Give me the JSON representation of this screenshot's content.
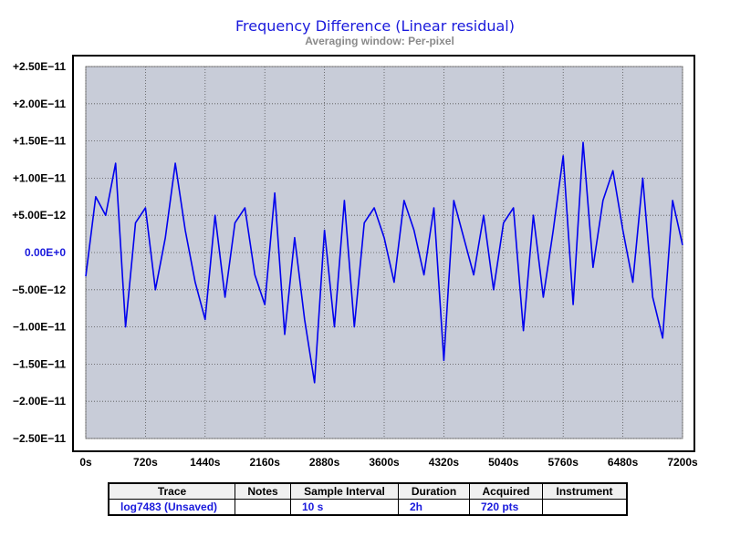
{
  "chart_data": {
    "type": "line",
    "title": "Frequency Difference  (Linear residual)",
    "subtitle": "Averaging window: Per-pixel",
    "xlabel": "",
    "ylabel": "",
    "x_unit": "s",
    "xlim": [
      0,
      7200
    ],
    "ylim": [
      -2.5e-11,
      2.5e-11
    ],
    "x_ticks": [
      0,
      720,
      1440,
      2160,
      2880,
      3600,
      4320,
      5040,
      5760,
      6480,
      7200
    ],
    "x_tick_labels": [
      "0s",
      "720s",
      "1440s",
      "2160s",
      "2880s",
      "3600s",
      "4320s",
      "5040s",
      "5760s",
      "6480s",
      "7200s"
    ],
    "y_ticks": [
      2.5e-11,
      2e-11,
      1.5e-11,
      1e-11,
      5e-12,
      0,
      -5e-12,
      -1e-11,
      -1.5e-11,
      -2e-11,
      -2.5e-11
    ],
    "y_tick_labels": [
      "+2.50E−11",
      "+2.00E−11",
      "+1.50E−11",
      "+1.00E−11",
      "+5.00E−12",
      "0.00E+0",
      "−5.00E−12",
      "−1.00E−11",
      "−1.50E−11",
      "−2.00E−11",
      "−2.50E−11"
    ],
    "grid": true,
    "colors": {
      "series": "#0000ee",
      "plot_bg": "#c8ccd8",
      "title": "#1a1adc",
      "zero_label": "#1a1adc"
    },
    "series": [
      {
        "x": [
          0,
          120,
          240,
          360,
          480,
          600,
          720,
          840,
          960,
          1080,
          1200,
          1320,
          1440,
          1560,
          1680,
          1800,
          1920,
          2040,
          2160,
          2280,
          2400,
          2520,
          2640,
          2760,
          2880,
          3000,
          3120,
          3240,
          3360,
          3480,
          3600,
          3720,
          3840,
          3960,
          4080,
          4200,
          4320,
          4440,
          4560,
          4680,
          4800,
          4920,
          5040,
          5160,
          5280,
          5400,
          5520,
          5640,
          5760,
          5880,
          6000,
          6120,
          6240,
          6360,
          6480,
          6600,
          6720,
          6840,
          6960,
          7080,
          7200
        ],
        "y": [
          -3.2e-12,
          7.5e-12,
          5e-12,
          1.2e-11,
          -1e-11,
          4e-12,
          6e-12,
          -5e-12,
          2e-12,
          1.2e-11,
          3e-12,
          -4e-12,
          -9e-12,
          5e-12,
          -6e-12,
          4e-12,
          6e-12,
          -3e-12,
          -7e-12,
          8e-12,
          -1.1e-11,
          2e-12,
          -9e-12,
          -1.75e-11,
          3e-12,
          -1e-11,
          7e-12,
          -1e-11,
          4e-12,
          6e-12,
          2e-12,
          -4e-12,
          7e-12,
          3e-12,
          -3e-12,
          6e-12,
          -1.45e-11,
          7e-12,
          2e-12,
          -3e-12,
          5e-12,
          -5e-12,
          4e-12,
          6e-12,
          -1.05e-11,
          5e-12,
          -6e-12,
          3e-12,
          1.3e-11,
          -7e-12,
          1.48e-11,
          -2e-12,
          7e-12,
          1.1e-11,
          3e-12,
          -4e-12,
          1e-11,
          -6e-12,
          -1.15e-11,
          7e-12,
          1e-12
        ]
      }
    ]
  },
  "info_table": {
    "headers": [
      "Trace",
      "Notes",
      "Sample Interval",
      "Duration",
      "Acquired",
      "Instrument"
    ],
    "row": [
      "log7483 (Unsaved)",
      "",
      "10 s",
      "2h",
      "720 pts",
      ""
    ]
  }
}
